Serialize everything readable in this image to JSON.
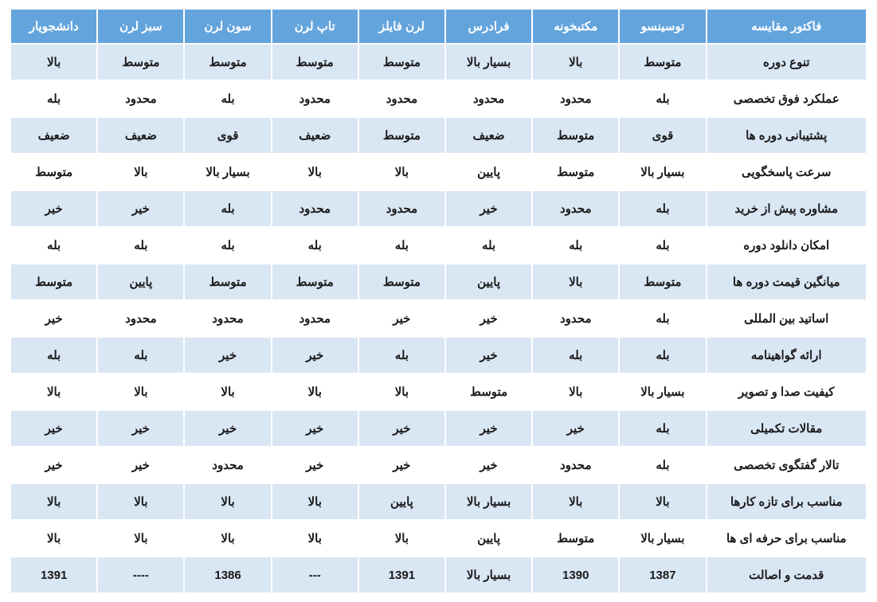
{
  "table": {
    "header_bg": "#63a4dd",
    "header_fg": "#ffffff",
    "row_even_bg": "#d9e6f4",
    "row_odd_bg": "#ffffff",
    "cell_fg": "#1a1a1a",
    "border_color": "#ffffff",
    "columns": [
      "فاکتور مقایسه",
      "توسینسو",
      "مکتبخونه",
      "فرادرس",
      "لرن فایلز",
      "تاپ لرن",
      "سون لرن",
      "سبز لرن",
      "دانشجویار"
    ],
    "rows": [
      [
        "تنوع دوره",
        "متوسط",
        "بالا",
        "بسیار بالا",
        "متوسط",
        "متوسط",
        "متوسط",
        "متوسط",
        "بالا"
      ],
      [
        "عملکرد فوق تخصصی",
        "بله",
        "محدود",
        "محدود",
        "محدود",
        "محدود",
        "بله",
        "محدود",
        "بله"
      ],
      [
        "پشتیبانی دوره ها",
        "قوی",
        "متوسط",
        "ضعیف",
        "متوسط",
        "ضعیف",
        "قوی",
        "ضعیف",
        "ضعیف"
      ],
      [
        "سرعت پاسخگویی",
        "بسیار بالا",
        "متوسط",
        "پایین",
        "بالا",
        "بالا",
        "بسیار بالا",
        "بالا",
        "متوسط"
      ],
      [
        "مشاوره پیش از خرید",
        "بله",
        "محدود",
        "خیر",
        "محدود",
        "محدود",
        "بله",
        "خیر",
        "خیر"
      ],
      [
        "امکان دانلود دوره",
        "بله",
        "بله",
        "بله",
        "بله",
        "بله",
        "بله",
        "بله",
        "بله"
      ],
      [
        "میانگین قیمت دوره ها",
        "متوسط",
        "بالا",
        "پایین",
        "متوسط",
        "متوسط",
        "متوسط",
        "پایین",
        "متوسط"
      ],
      [
        "اساتید بین المللی",
        "بله",
        "محدود",
        "خیر",
        "خیر",
        "محدود",
        "محدود",
        "محدود",
        "خیر"
      ],
      [
        "ارائه گواهینامه",
        "بله",
        "بله",
        "خیر",
        "بله",
        "خیر",
        "خیر",
        "بله",
        "بله"
      ],
      [
        "کیفیت صدا و تصویر",
        "بسیار بالا",
        "بالا",
        "متوسط",
        "بالا",
        "بالا",
        "بالا",
        "بالا",
        "بالا"
      ],
      [
        "مقالات تکمیلی",
        "بله",
        "خیر",
        "خیر",
        "خیر",
        "خیر",
        "خیر",
        "خیر",
        "خیر"
      ],
      [
        "تالار گفتگوی تخصصی",
        "بله",
        "محدود",
        "خیر",
        "خیر",
        "خیر",
        "محدود",
        "خیر",
        "خیر"
      ],
      [
        "مناسب برای تازه کارها",
        "بالا",
        "بالا",
        "بسیار بالا",
        "پایین",
        "بالا",
        "بالا",
        "بالا",
        "بالا"
      ],
      [
        "مناسب برای حرفه ای ها",
        "بسیار بالا",
        "متوسط",
        "پایین",
        "بالا",
        "بالا",
        "بالا",
        "بالا",
        "بالا"
      ],
      [
        "قدمت و اصالت",
        "1387",
        "1390",
        "بسیار بالا",
        "1391",
        "---",
        "1386",
        "----",
        "1391"
      ]
    ]
  }
}
